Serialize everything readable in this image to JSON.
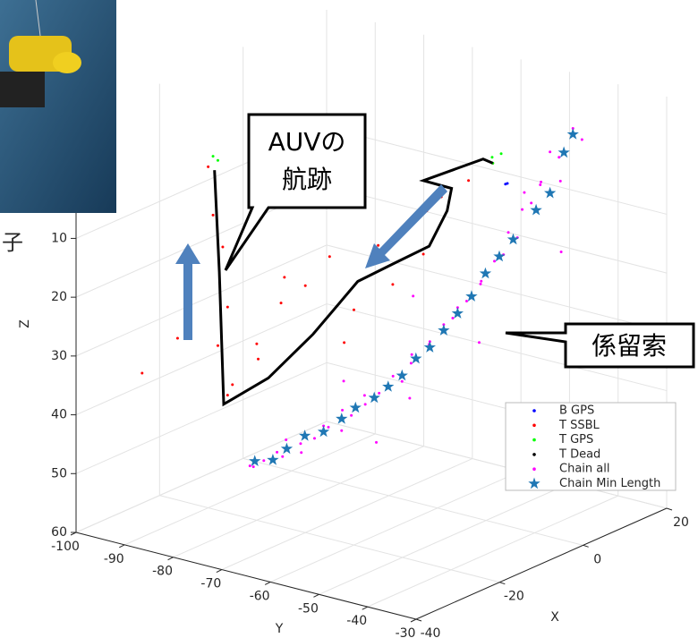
{
  "chart_data": {
    "type": "scatter3d",
    "xlabel": "X",
    "ylabel": "Y",
    "zlabel": "Z",
    "xlim": [
      -40,
      20
    ],
    "ylim": [
      -100,
      -30
    ],
    "zlim": [
      -10,
      60
    ],
    "zreverse": true,
    "xticks": [
      -40,
      -20,
      0,
      20
    ],
    "yticks": [
      -100,
      -90,
      -80,
      -70,
      -60,
      -50,
      -40,
      -30
    ],
    "zticks": [
      10,
      20,
      30,
      40,
      50,
      60
    ],
    "grid": true,
    "legend_loc": "east",
    "annotations": [
      "AUVの",
      "航跡",
      "係留索",
      "子"
    ],
    "series": [
      {
        "name": "B GPS",
        "color": "#0000ff",
        "marker": "dot",
        "x": [
          -10,
          -10
        ],
        "y": [
          -37.4,
          -37
        ],
        "z": [
          -3,
          -3.2
        ]
      },
      {
        "name": "T SSBL",
        "color": "#ff0000",
        "marker": "dot",
        "x": [
          -20,
          -20,
          -20,
          -20,
          -20,
          -20,
          -25,
          -15,
          -20,
          -20,
          -20,
          -20,
          -20,
          -20,
          -20,
          -20,
          -20,
          -10,
          -10,
          -15,
          -25,
          -20,
          -30,
          -20,
          -20
        ],
        "y": [
          -90,
          -89,
          -87,
          -86,
          -88,
          -86,
          -92,
          -84,
          -80,
          -75,
          -70,
          -65,
          -60,
          -55,
          -50,
          -45,
          -42,
          -45,
          -40,
          -50,
          -70,
          -85,
          -95,
          -62,
          -52
        ],
        "z": [
          2,
          10,
          15,
          25,
          32,
          40,
          30,
          35,
          30,
          22,
          18,
          12,
          20,
          8,
          4,
          0,
          -3,
          -2,
          -6,
          10,
          15,
          38,
          35,
          26,
          14
        ]
      },
      {
        "name": "T GPS",
        "color": "#00ff00",
        "marker": "dot",
        "x": [
          -20,
          -20,
          -10,
          -9,
          -8
        ],
        "y": [
          -89,
          -88,
          -40,
          -41,
          -40
        ],
        "z": [
          0,
          0.5,
          -6,
          -6.5,
          -7
        ]
      },
      {
        "name": "T Dead",
        "color": "#000000",
        "marker": "line",
        "x": [
          -20,
          -20,
          -20,
          -20,
          -20,
          -20,
          -20,
          -20,
          -20,
          -20,
          -20,
          -10,
          -10
        ],
        "y": [
          -88.7,
          -87.7,
          -86.8,
          -77.6,
          -68.4,
          -59.2,
          -51.8,
          -44.5,
          -40.8,
          -39.9,
          -45.7,
          -42,
          -40
        ],
        "z": [
          2.3,
          19.4,
          41.7,
          35.3,
          25.9,
          15,
          10.4,
          5.9,
          -0.9,
          -4.9,
          -5,
          -6.3,
          -6
        ]
      },
      {
        "name": "Chain all",
        "color": "#ff00ff",
        "marker": "dot",
        "x": [
          -10,
          -8,
          -9,
          -7,
          -8,
          -6,
          -6,
          -7,
          -5,
          -4,
          -4,
          -2,
          -2,
          -3,
          -1,
          0,
          0,
          1,
          1,
          2,
          3,
          2,
          4,
          5,
          5,
          6,
          6,
          7,
          8,
          7,
          9,
          10,
          10,
          11,
          11,
          12,
          12,
          13,
          14,
          13,
          15,
          16,
          -3,
          10,
          0,
          15,
          -5,
          12,
          5,
          18
        ],
        "y": [
          -90,
          -91,
          -88,
          -87,
          -85,
          -86,
          -83,
          -82,
          -81,
          -80,
          -79,
          -78,
          -76,
          -77,
          -74,
          -75,
          -72,
          -71,
          -70,
          -69,
          -68,
          -67,
          -65,
          -66,
          -63,
          -62,
          -61,
          -60,
          -58,
          -57,
          -56,
          -55,
          -54,
          -53,
          -52,
          -51,
          -49,
          -50,
          -47,
          -48,
          -45,
          -44,
          -70,
          -60,
          -65,
          -55,
          -75,
          -45,
          -70,
          -50
        ],
        "z": [
          56,
          57,
          55,
          54,
          54,
          52,
          52,
          53,
          51,
          49,
          49,
          50,
          47,
          46,
          45,
          44,
          43,
          42,
          40,
          41,
          38,
          36,
          34,
          35,
          31,
          30,
          28,
          27,
          24,
          23,
          20,
          19,
          15,
          16,
          11,
          10,
          6,
          7,
          2,
          1,
          -3,
          -1,
          50,
          35,
          25,
          10,
          40,
          5,
          45,
          20
        ]
      },
      {
        "name": "Chain Min Length",
        "color": "#1f77b4",
        "marker": "star",
        "x": [
          -10,
          -8,
          -7,
          -5,
          -4,
          -2,
          -1,
          0,
          1,
          2,
          3,
          4,
          5,
          6,
          7,
          8,
          9,
          10,
          12,
          13,
          15,
          14
        ],
        "y": [
          -89,
          -87,
          -85,
          -83,
          -80,
          -78,
          -76,
          -73,
          -71,
          -69,
          -67,
          -65,
          -63,
          -61,
          -59,
          -57,
          -55,
          -53,
          -50,
          -48,
          -45,
          -46
        ],
        "z": [
          55,
          55,
          53,
          51,
          50,
          48,
          46,
          44,
          42,
          40,
          37,
          35,
          32,
          29,
          26,
          22,
          19,
          16,
          11,
          8,
          -2,
          1
        ]
      }
    ]
  }
}
